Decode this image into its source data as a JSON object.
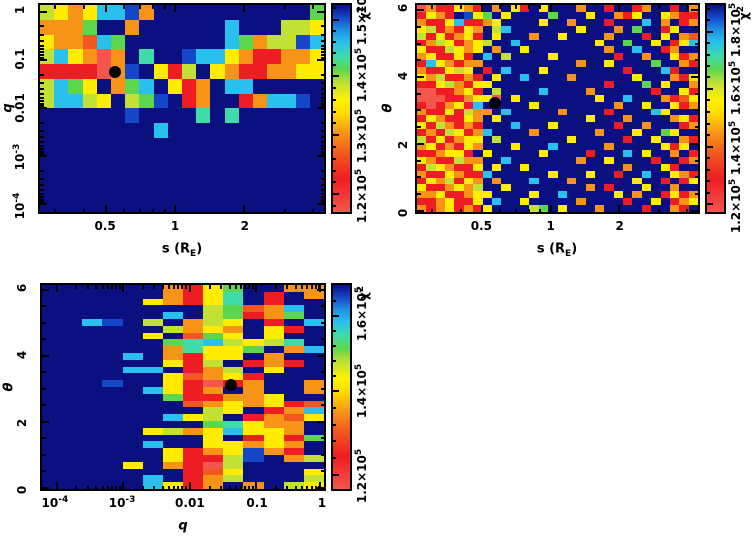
{
  "chart_data": {
    "type": "heatmap",
    "figure_description": "Three chi-squared grid-search maps for a binary microlens fit; black dot marks best-fit parameters",
    "palette": {
      "B": "#0a1080",
      "b": "#1646c8",
      "c": "#2ac0ee",
      "s": "#3fdca8",
      "g": "#5cd64f",
      "G": "#c3e135",
      "y": "#ffec00",
      "o": "#f79418",
      "O": "#f1571f",
      "r": "#ee1d23",
      "p": "#f4564e"
    },
    "palette_norm_position": {
      "B": 1.0,
      "b": 0.94,
      "c": 0.84,
      "s": 0.75,
      "g": 0.69,
      "G": 0.62,
      "y": 0.53,
      "o": 0.4,
      "O": 0.3,
      "r": 0.2,
      "p": 0.05
    },
    "colorbar_stops": [
      "#f4564e 0%",
      "#ee1d23 16%",
      "#f1571f 28%",
      "#f79418 38%",
      "#ffd800 47%",
      "#fff200 54%",
      "#c3e135 62%",
      "#5cd64f 69%",
      "#3fdca8 75%",
      "#2ac0ee 82%",
      "#1e90e0 88%",
      "#1646c8 94%",
      "#0a1080 100%"
    ],
    "panels": [
      {
        "name": "chi2 map in s-q plane",
        "xlabel": {
          "pre": "s (R",
          "sub": "E",
          "post": ")"
        },
        "ylabel": "q",
        "x_ticks": [
          {
            "t": "0.5",
            "e": "",
            "f": 0.233
          },
          {
            "t": "1",
            "e": "",
            "f": 0.476
          },
          {
            "t": "2",
            "e": "",
            "f": 0.718
          }
        ],
        "x_minor": [
          0.054,
          0.155,
          0.297,
          0.351,
          0.398,
          0.439,
          0.861,
          0.962
        ],
        "y_ticks": [
          {
            "t": "1",
            "e": "",
            "f": 0.033
          },
          {
            "t": "0.1",
            "e": "",
            "f": 0.266
          },
          {
            "t": "0.01",
            "e": "",
            "f": 0.498
          },
          {
            "t": "10",
            "e": "-3",
            "f": 0.731
          },
          {
            "t": "10",
            "e": "-4",
            "f": 0.963
          }
        ],
        "y_minor": [
          0.103,
          0.144,
          0.173,
          0.196,
          0.214,
          0.229,
          0.243,
          0.255,
          0.336,
          0.377,
          0.406,
          0.429,
          0.447,
          0.462,
          0.476,
          0.488,
          0.568,
          0.609,
          0.638,
          0.661,
          0.679,
          0.694,
          0.708,
          0.72,
          0.801,
          0.842,
          0.871,
          0.894,
          0.912,
          0.927,
          0.941,
          0.953
        ],
        "x_range_log": [
          0.26,
          4.5
        ],
        "y_range_log": [
          7e-05,
          1.4
        ],
        "best_fit": {
          "s": 0.6,
          "q": 0.05,
          "x_frac": 0.264,
          "y_frac": 0.325
        },
        "cb": {
          "label": {
            "base": "χ",
            "exp": "2"
          },
          "range": [
            117000,
            153000
          ],
          "ticks": [
            {
              "t": "1.5×10",
              "e": "5",
              "f": 0.071
            },
            {
              "t": "1.4×10",
              "e": "5",
              "f": 0.343
            },
            {
              "t": "1.3×10",
              "e": "5",
              "f": 0.629
            },
            {
              "t": "1.2×10",
              "e": "5",
              "f": 0.914
            }
          ]
        },
        "grid": {
          "cols": 20,
          "rows": 14,
          "cells": [
            "GyoyccboBBBBBBBBBBBg",
            "ooogBBoBBBBBBcBBBGGy",
            "yooOcgBBBBBBBcgoGGbc",
            "GcyopoBsBBbccyorrooy",
            "rrrrpobByrGByorrooyy",
            "GcgyBogcByroBccBBBBB",
            "GccGyBGgbBroBBroccbB",
            "BBBBBBbBBBBsBsBBBBBB",
            "BBBBBBBBcBBBBBBBBBBB",
            "BBBBBBBBBBBBBBBBBBBB",
            "BBBBBBBBBBBBBBBBBBBB",
            "BBBBBBBBBBBBBBBBBBBB",
            "BBBBBBBBBBBBBBBBBBBB",
            "BBBBBBBBBBBBBBBBBBBB"
          ]
        }
      },
      {
        "name": "chi2 map in s-theta plane",
        "xlabel": {
          "pre": "s (R",
          "sub": "E",
          "post": ")"
        },
        "ylabel": "θ",
        "x_ticks": [
          {
            "t": "0.5",
            "e": "",
            "f": 0.233
          },
          {
            "t": "1",
            "e": "",
            "f": 0.476
          },
          {
            "t": "2",
            "e": "",
            "f": 0.718
          }
        ],
        "x_minor": [
          0.054,
          0.155,
          0.297,
          0.351,
          0.398,
          0.439,
          0.861,
          0.962
        ],
        "y_ticks": [
          {
            "t": "6",
            "e": "",
            "f": 0.024
          },
          {
            "t": "4",
            "e": "",
            "f": 0.348
          },
          {
            "t": "2",
            "e": "",
            "f": 0.671
          },
          {
            "t": "0",
            "e": "",
            "f": 0.995
          }
        ],
        "y_minor": [
          0.105,
          0.186,
          0.267,
          0.428,
          0.509,
          0.59,
          0.752,
          0.833,
          0.914
        ],
        "x_range_log": [
          0.26,
          4.5
        ],
        "y_range": [
          0,
          6.2
        ],
        "best_fit": {
          "s": 0.6,
          "theta": 3.1,
          "x_frac": 0.277,
          "y_frac": 0.474
        },
        "cb": {
          "label": {
            "base": "χ",
            "exp": "2"
          },
          "range": [
            110000,
            190000
          ],
          "ticks": [
            {
              "t": "1.8×10",
              "e": "5",
              "f": 0.129
            },
            {
              "t": "1.6×10",
              "e": "5",
              "f": 0.405
            },
            {
              "t": "1.4×10",
              "e": "5",
              "f": 0.686
            },
            {
              "t": "1.2×10",
              "e": "5",
              "f": 0.962
            }
          ]
        },
        "grid": {
          "cols": 30,
          "rows": 30,
          "cells": [
            "porryorBoByrByBBBoBBrBBroBBrBo",
            "ryorBbygByBBBBgBBByBBoryBByorr",
            "orrycrroyBBBByBBoBBBrBBBcBoBro",
            "yGroryoBGcBBBBBBByBBBoBgBBryBB",
            "GryroyrByBBBoBByBBBBoBBBrByBoO",
            "roGyroyGBBcBBBBBBBByBBgBByBryc",
            "yrrGyoyBoBByBBBBBBBBoBBcBBroBB",
            "oyrryrBcBGBBBByBBBBBBrBBoBByro",
            "rcyorooBBBBBBBBBBoBByBBBBgBBor",
            "orryGyBrBcBBByBBBBBBBBrBBBcrBB",
            "yoGrrorByBBcBBBBoBBBBBByBBBory",
            "rryGoryyBBBBBBBBBBBBrBBBgByBBo",
            "pprroyrBGBBBBcBBBBoBBBBBBrBByr",
            "ppprroyypByBBBBBBBByBBcBBBorOy",
            "rproyrcBBBBByBBBBBBBBoBByBByro",
            "orryrGooBcBBBBBoBBBBrBBBBcyBBB",
            "ryorryoByBBBBBBBBByBBBoBBBBoyr",
            "yrGororBBBcBBByBBBBBBrBBoBBBro",
            "rorGyrocBBBBoBBBBBBoBBByBBgyBB",
            "GryroyyBGBBBBBBByBBBBBrBByBBor",
            "oyroryoBBByBBBcBBBBBoBBBBByryB",
            "rroyyrByBBBBByBBBBrBBBcByBBoBr",
            "yorrGooBBcBBBBBBBoBByBBBBrBBro",
            "rGyorryByBByBBBBBBBBBBoBBByrBB",
            "orryorrcBBBBBByBBByBBrBBcBByor",
            "ryoGryoBoBBBcBBBoBBBBBByBBrBry",
            "yrroyoGBByBBBBBBBBoBrBBByBBoBB",
            "ooyrroyyBBBByBBcBBBBByBoBBryro",
            "rroyrryBcBByBBBBBoBBBBrBByBroy",
            "oroyroryBBBBGgByBBBoBBBBrBBorB"
          ]
        }
      },
      {
        "name": "chi2 map in q-theta plane",
        "xlabel": {
          "pre": "q",
          "sub": "",
          "post": ""
        },
        "ylabel": "θ",
        "x_ticks": [
          {
            "t": "10",
            "e": "-4",
            "f": 0.052
          },
          {
            "t": "10",
            "e": "-3",
            "f": 0.287
          },
          {
            "t": "0.01",
            "e": "",
            "f": 0.524
          },
          {
            "t": "0.1",
            "e": "",
            "f": 0.759
          },
          {
            "t": "1",
            "e": "",
            "f": 0.986
          }
        ],
        "x_minor": [
          0.122,
          0.163,
          0.193,
          0.215,
          0.234,
          0.249,
          0.263,
          0.275,
          0.357,
          0.398,
          0.428,
          0.45,
          0.469,
          0.484,
          0.498,
          0.51,
          0.594,
          0.635,
          0.665,
          0.687,
          0.706,
          0.721,
          0.735,
          0.747,
          0.829,
          0.87,
          0.9,
          0.922,
          0.941,
          0.956,
          0.97,
          0.982
        ],
        "y_ticks": [
          {
            "t": "6",
            "e": "",
            "f": 0.024
          },
          {
            "t": "4",
            "e": "",
            "f": 0.348
          },
          {
            "t": "2",
            "e": "",
            "f": 0.671
          },
          {
            "t": "0",
            "e": "",
            "f": 0.995
          }
        ],
        "y_minor": [
          0.105,
          0.186,
          0.267,
          0.428,
          0.509,
          0.59,
          0.752,
          0.833,
          0.914
        ],
        "x_range_log": [
          6e-05,
          1.6
        ],
        "y_range": [
          0,
          6.2
        ],
        "best_fit": {
          "q": 0.05,
          "theta": 3.1,
          "x_frac": 0.671,
          "y_frac": 0.49
        },
        "cb": {
          "label": {
            "base": "χ",
            "exp": "2"
          },
          "range": [
            117000,
            166000
          ],
          "ticks": [
            {
              "t": "1.6×10",
              "e": "5",
              "f": 0.15
            },
            {
              "t": "1.4×10",
              "e": "5",
              "f": 0.52
            },
            {
              "t": "1.2×10",
              "e": "5",
              "f": 0.93
            }
          ]
        },
        "grid": {
          "cols": 14,
          "rows": 30,
          "cells": [
            "BBBBBBorygBBoo",
            "BBBBBBorysBrBo",
            "BBBBByorysBrBB",
            "BBBBBBBBGgOocB",
            "BBBBBBcBGgrogB",
            "BBcbBGBoGyBrBc",
            "BBBBBBGoyoByrB",
            "BBBBByBOgyByBB",
            "BBBBBBgscGyGsB",
            "BBBBBBosyygBoc",
            "BBBBcBoryyBoBB",
            "BBBBBByrGBrorB",
            "BBBBccBroGByBB",
            "BBBBBByOoyrBBB",
            "BBBbBByrproBBo",
            "BBBBBcyroBoBBo",
            "BBBBBBgrrooyBB",
            "BBBBBBBOoyoyrO",
            "BBBBBBBBGyBroc",
            "BBBBBBcyGBroOy",
            "BBBBBBBBgsyooB",
            "BBBBByGoycyyoB",
            "BBBBBBBByBryrg",
            "BBBBBcBByyoyoB",
            "BBBBBByroyborB",
            "BBBBBByrrGbBoG",
            "BBBByBorpGBBBB",
            "BBBBBBBrOyBBBy",
            "BBBBBcBroGBBBG",
            "BBBBBcyroBoBGy"
          ]
        }
      }
    ]
  }
}
